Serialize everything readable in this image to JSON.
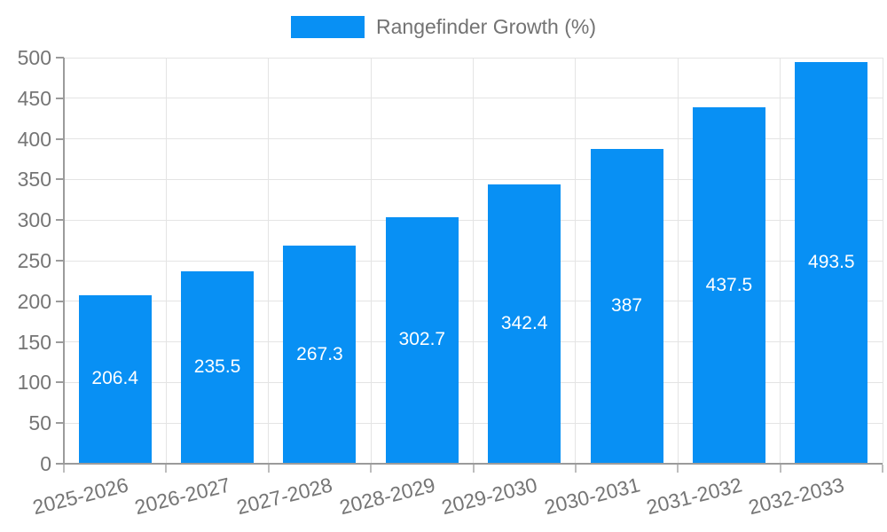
{
  "legend": {
    "label": "Rangefinder Growth (%)"
  },
  "chart_data": {
    "type": "bar",
    "title": "Rangefinder Growth (%)",
    "categories": [
      "2025-2026",
      "2026-2027",
      "2027-2028",
      "2028-2029",
      "2029-2030",
      "2030-2031",
      "2031-2032",
      "2032-2033"
    ],
    "values": [
      206.4,
      235.5,
      267.3,
      302.7,
      342.4,
      387,
      437.5,
      493.5
    ],
    "value_labels": [
      "206.4",
      "235.5",
      "267.3",
      "302.7",
      "342.4",
      "387",
      "437.5",
      "493.5"
    ],
    "xlabel": "",
    "ylabel": "",
    "ylim": [
      0,
      500
    ],
    "yticks": [
      0,
      50,
      100,
      150,
      200,
      250,
      300,
      350,
      400,
      450,
      500
    ],
    "grid": "both",
    "legend_position": "top-center",
    "bar_color": "#0890f4",
    "value_label_color": "#ffffff"
  },
  "colors": {
    "bar": "#0890f4",
    "grid": "#e4e4e4",
    "axis": "#9b9b9b",
    "tick_text": "#757575",
    "legend_text": "#737373",
    "background": "#ffffff"
  }
}
